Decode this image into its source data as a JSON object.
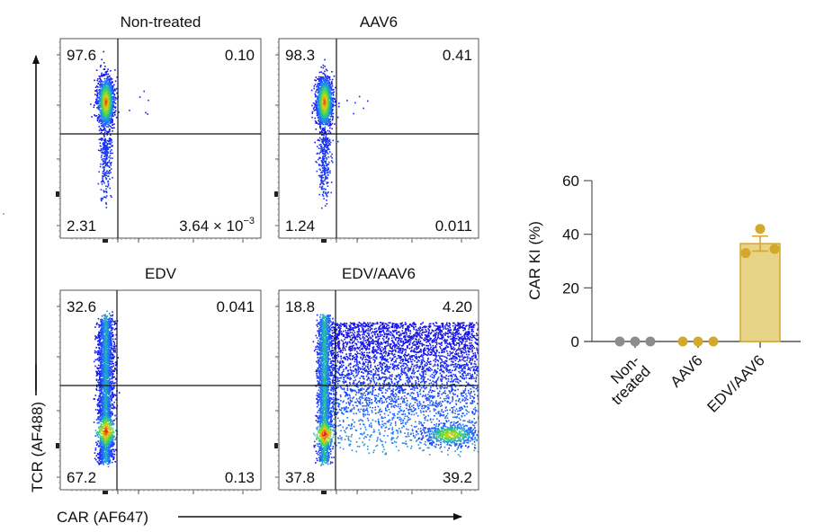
{
  "chart_data": [
    {
      "type": "scatter",
      "subtype": "flow-cytometry-quadrant-plots",
      "xlabel": "CAR (AF647)",
      "ylabel": "TCR (AF488)",
      "panels": [
        {
          "title": "Non-treated",
          "quadrants": {
            "top_left": "97.6",
            "top_right": "0.10",
            "bottom_left": "2.31",
            "bottom_right_mantissa": "3.64 × 10",
            "bottom_right_exponent": "−3"
          },
          "pattern": "tcr-high-car-neg"
        },
        {
          "title": "AAV6",
          "quadrants": {
            "top_left": "98.3",
            "top_right": "0.41",
            "bottom_left": "1.24",
            "bottom_right": "0.011"
          },
          "pattern": "tcr-high-car-neg"
        },
        {
          "title": "EDV",
          "quadrants": {
            "top_left": "32.6",
            "top_right": "0.041",
            "bottom_left": "67.2",
            "bottom_right": "0.13"
          },
          "pattern": "tcr-spread-car-neg"
        },
        {
          "title": "EDV/AAV6",
          "quadrants": {
            "top_left": "18.8",
            "top_right": "4.20",
            "bottom_left": "37.8",
            "bottom_right": "39.2"
          },
          "pattern": "tcr-spread-car-pos"
        }
      ]
    },
    {
      "type": "bar",
      "ylabel": "CAR KI (%)",
      "xlabel": "",
      "ylim": [
        0,
        60
      ],
      "yticks": [
        "0",
        "20",
        "40",
        "60"
      ],
      "categories": [
        "Non-\ntreated",
        "AAV6",
        "EDV/AAV6"
      ],
      "category_lines": [
        [
          "Non-",
          "treated"
        ],
        [
          "AAV6"
        ],
        [
          "EDV/AAV6"
        ]
      ],
      "means": [
        0,
        0,
        36.5
      ],
      "sem": [
        0,
        0,
        2.8
      ],
      "points": [
        [
          0,
          0,
          0
        ],
        [
          0,
          0,
          0
        ],
        [
          33,
          42,
          34.5
        ]
      ],
      "colors": {
        "non_treated": "#8c8c8c",
        "aav6": "#d4a82a",
        "bar_fill": "#e8d486",
        "bar_edge": "#d4a82a"
      }
    }
  ]
}
